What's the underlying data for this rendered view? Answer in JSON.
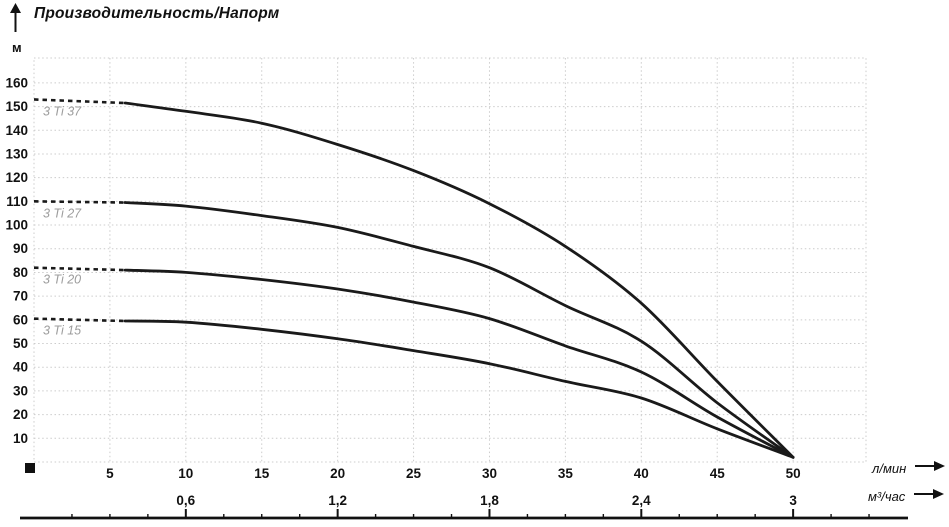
{
  "chart_data": {
    "type": "line",
    "title": "Производительность/Напорм",
    "ylabel": "м",
    "xlabel_primary": "л/мин",
    "xlabel_secondary": "м³/час",
    "xlim": [
      0,
      54.8
    ],
    "ylim": [
      0,
      170.5
    ],
    "grid": true,
    "legend_position": "labels-on-curves",
    "x_ticks_lmin": [
      5,
      10,
      15,
      20,
      25,
      30,
      35,
      40,
      45,
      50
    ],
    "x_ticks_m3h": [
      {
        "label": "0,6",
        "at_lmin": 10
      },
      {
        "label": "1,2",
        "at_lmin": 20
      },
      {
        "label": "1,8",
        "at_lmin": 30
      },
      {
        "label": "2,4",
        "at_lmin": 40
      },
      {
        "label": "3",
        "at_lmin": 50
      }
    ],
    "y_ticks": [
      10,
      20,
      30,
      40,
      50,
      60,
      70,
      80,
      90,
      100,
      110,
      120,
      130,
      140,
      150,
      160
    ],
    "series": [
      {
        "name": "3 Ti 37",
        "dashed_lead": [
          [
            0,
            153
          ],
          [
            6,
            151.5
          ]
        ],
        "points": [
          [
            6,
            151.5
          ],
          [
            10,
            148
          ],
          [
            15,
            143
          ],
          [
            20,
            134
          ],
          [
            25,
            123
          ],
          [
            30,
            109
          ],
          [
            35,
            91
          ],
          [
            40,
            67
          ],
          [
            45,
            34
          ],
          [
            50,
            2
          ]
        ]
      },
      {
        "name": "3 Ti 27",
        "dashed_lead": [
          [
            0,
            110
          ],
          [
            6,
            109.5
          ]
        ],
        "points": [
          [
            6,
            109.5
          ],
          [
            10,
            108
          ],
          [
            15,
            104
          ],
          [
            20,
            99
          ],
          [
            25,
            91
          ],
          [
            30,
            82
          ],
          [
            35,
            66
          ],
          [
            40,
            51
          ],
          [
            45,
            25
          ],
          [
            50,
            2
          ]
        ]
      },
      {
        "name": "3 Ti 20",
        "dashed_lead": [
          [
            0,
            82
          ],
          [
            6,
            81
          ]
        ],
        "points": [
          [
            6,
            81
          ],
          [
            10,
            80
          ],
          [
            15,
            77
          ],
          [
            20,
            73
          ],
          [
            25,
            67.5
          ],
          [
            30,
            60.5
          ],
          [
            35,
            49
          ],
          [
            40,
            38
          ],
          [
            45,
            19
          ],
          [
            50,
            2
          ]
        ]
      },
      {
        "name": "3 Ti 15",
        "dashed_lead": [
          [
            0,
            60.5
          ],
          [
            6,
            59.5
          ]
        ],
        "points": [
          [
            6,
            59.5
          ],
          [
            10,
            59
          ],
          [
            15,
            56
          ],
          [
            20,
            52
          ],
          [
            25,
            47
          ],
          [
            30,
            41.5
          ],
          [
            35,
            34
          ],
          [
            40,
            27
          ],
          [
            45,
            14
          ],
          [
            50,
            2
          ]
        ]
      }
    ],
    "colors": {
      "curve": "#1a1a1a",
      "grid": "#cccccc",
      "series_label": "#9c9c9c",
      "text": "#111111"
    }
  }
}
